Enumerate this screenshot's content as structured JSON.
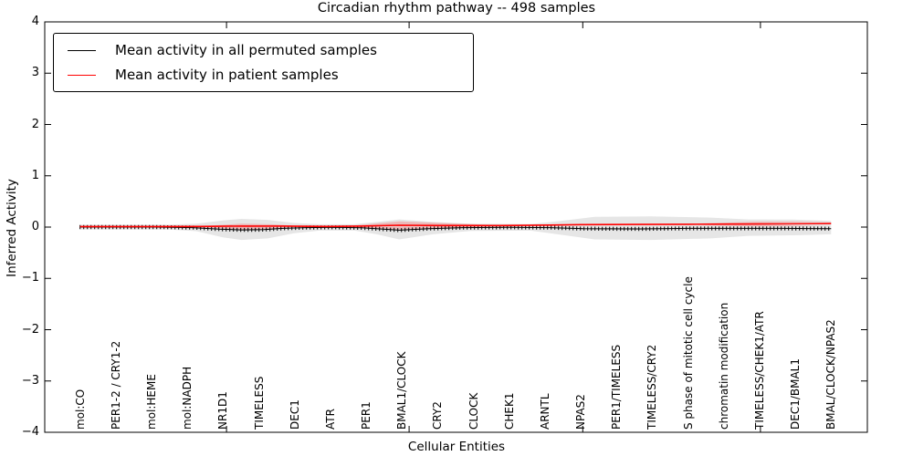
{
  "figure": {
    "title": "Circadian rhythm pathway -- 498 samples",
    "xlabel": "Cellular Entities",
    "ylabel": "Inferred Activity"
  },
  "legend": {
    "position": "upper left",
    "items": [
      {
        "label": "Mean activity in all permuted samples",
        "color": "#000000"
      },
      {
        "label": "Mean activity in patient samples",
        "color": "#ff0000"
      }
    ]
  },
  "chart_data": {
    "type": "line",
    "title": "Circadian rhythm pathway -- 498 samples",
    "xlabel": "Cellular Entities",
    "ylabel": "Inferred Activity",
    "ylim": [
      -4,
      4
    ],
    "yticks": [
      "4",
      "3",
      "2",
      "1",
      "0",
      "−1",
      "−2",
      "−3",
      "−4"
    ],
    "grid": false,
    "legend_position": "upper left",
    "categories": [
      "mol:CO",
      "PER1-2 / CRY1-2",
      "mol:HEME",
      "mol:NADPH",
      "NR1D1",
      "TIMELESS",
      "DEC1",
      "ATR",
      "PER1",
      "BMAL1/CLOCK",
      "CRY2",
      "CLOCK",
      "CHEK1",
      "ARNTL",
      "NPAS2",
      "PER1/TIMELESS",
      "TIMELESS/CRY2",
      "S phase of mitotic cell cycle",
      "chromatin modification",
      "TIMELESS/CHEK1/ATR",
      "DEC1/BMAL1",
      "BMAL/CLOCK/NPAS2"
    ],
    "x_axis_note": "categorical axis; series x values are fractions 0-1 spanning the 22 labeled entities (many unlabeled points between labels)",
    "series": [
      {
        "name": "Mean activity in all permuted samples",
        "color": "#000000",
        "style": "thin line with dense vertical tick markers",
        "marker_every_px": 4,
        "points": [
          [
            0.0,
            0.0
          ],
          [
            0.1,
            0.0
          ],
          [
            0.15,
            -0.01
          ],
          [
            0.185,
            -0.04
          ],
          [
            0.215,
            -0.055
          ],
          [
            0.245,
            -0.05
          ],
          [
            0.27,
            -0.025
          ],
          [
            0.3,
            -0.01
          ],
          [
            0.34,
            -0.005
          ],
          [
            0.375,
            -0.015
          ],
          [
            0.425,
            -0.06
          ],
          [
            0.465,
            -0.03
          ],
          [
            0.51,
            -0.01
          ],
          [
            0.57,
            -0.005
          ],
          [
            0.625,
            -0.01
          ],
          [
            0.67,
            -0.03
          ],
          [
            0.745,
            -0.035
          ],
          [
            0.81,
            -0.025
          ],
          [
            0.87,
            -0.025
          ],
          [
            0.935,
            -0.025
          ],
          [
            1.0,
            -0.03
          ]
        ]
      },
      {
        "name": "Mean activity in patient samples",
        "color": "#ff0000",
        "style": "solid",
        "points": [
          [
            0.0,
            0.01
          ],
          [
            0.1,
            0.01
          ],
          [
            0.16,
            0.012
          ],
          [
            0.215,
            0.02
          ],
          [
            0.27,
            0.02
          ],
          [
            0.33,
            0.012
          ],
          [
            0.375,
            0.02
          ],
          [
            0.425,
            0.035
          ],
          [
            0.48,
            0.03
          ],
          [
            0.56,
            0.03
          ],
          [
            0.625,
            0.04
          ],
          [
            0.67,
            0.048
          ],
          [
            0.745,
            0.052
          ],
          [
            0.81,
            0.055
          ],
          [
            0.87,
            0.058
          ],
          [
            0.935,
            0.062
          ],
          [
            1.0,
            0.07
          ]
        ]
      }
    ],
    "bands": [
      {
        "name": "permuted-samples-spread",
        "color": "#e6e6e6",
        "upper": [
          [
            0.0,
            0.05
          ],
          [
            0.12,
            0.05
          ],
          [
            0.155,
            0.065
          ],
          [
            0.19,
            0.13
          ],
          [
            0.215,
            0.16
          ],
          [
            0.25,
            0.14
          ],
          [
            0.285,
            0.08
          ],
          [
            0.32,
            0.055
          ],
          [
            0.365,
            0.055
          ],
          [
            0.395,
            0.1
          ],
          [
            0.425,
            0.15
          ],
          [
            0.47,
            0.1
          ],
          [
            0.52,
            0.065
          ],
          [
            0.6,
            0.06
          ],
          [
            0.64,
            0.12
          ],
          [
            0.685,
            0.2
          ],
          [
            0.76,
            0.21
          ],
          [
            0.84,
            0.185
          ],
          [
            0.89,
            0.15
          ],
          [
            0.95,
            0.145
          ],
          [
            1.0,
            0.12
          ]
        ],
        "lower": [
          [
            0.0,
            -0.05
          ],
          [
            0.12,
            -0.05
          ],
          [
            0.155,
            -0.08
          ],
          [
            0.19,
            -0.2
          ],
          [
            0.215,
            -0.25
          ],
          [
            0.25,
            -0.22
          ],
          [
            0.285,
            -0.12
          ],
          [
            0.32,
            -0.065
          ],
          [
            0.365,
            -0.065
          ],
          [
            0.395,
            -0.14
          ],
          [
            0.425,
            -0.24
          ],
          [
            0.47,
            -0.14
          ],
          [
            0.52,
            -0.075
          ],
          [
            0.6,
            -0.07
          ],
          [
            0.64,
            -0.15
          ],
          [
            0.685,
            -0.24
          ],
          [
            0.76,
            -0.25
          ],
          [
            0.84,
            -0.22
          ],
          [
            0.89,
            -0.17
          ],
          [
            0.95,
            -0.16
          ],
          [
            1.0,
            -0.14
          ]
        ]
      },
      {
        "name": "patient-samples-spread-left",
        "color": "rgba(255,0,0,0.20)",
        "upper": [
          [
            0.155,
            0.015
          ],
          [
            0.215,
            0.065
          ],
          [
            0.255,
            0.055
          ],
          [
            0.3,
            0.015
          ]
        ],
        "lower": [
          [
            0.3,
            -0.01
          ],
          [
            0.255,
            -0.04
          ],
          [
            0.215,
            -0.045
          ],
          [
            0.155,
            -0.005
          ]
        ]
      },
      {
        "name": "patient-samples-spread-mid",
        "color": "rgba(255,0,0,0.20)",
        "upper": [
          [
            0.36,
            0.025
          ],
          [
            0.425,
            0.11
          ],
          [
            0.475,
            0.085
          ],
          [
            0.535,
            0.05
          ],
          [
            0.585,
            0.03
          ]
        ],
        "lower": [
          [
            0.585,
            0.01
          ],
          [
            0.535,
            0.0
          ],
          [
            0.475,
            -0.02
          ],
          [
            0.425,
            -0.045
          ],
          [
            0.36,
            0.0
          ]
        ]
      },
      {
        "name": "patient-samples-spread-right",
        "color": "rgba(255,0,0,0.20)",
        "upper": [
          [
            0.82,
            0.07
          ],
          [
            0.9,
            0.105
          ],
          [
            1.0,
            0.11
          ]
        ],
        "lower": [
          [
            1.0,
            0.02
          ],
          [
            0.9,
            0.012
          ],
          [
            0.82,
            0.035
          ]
        ]
      }
    ]
  }
}
